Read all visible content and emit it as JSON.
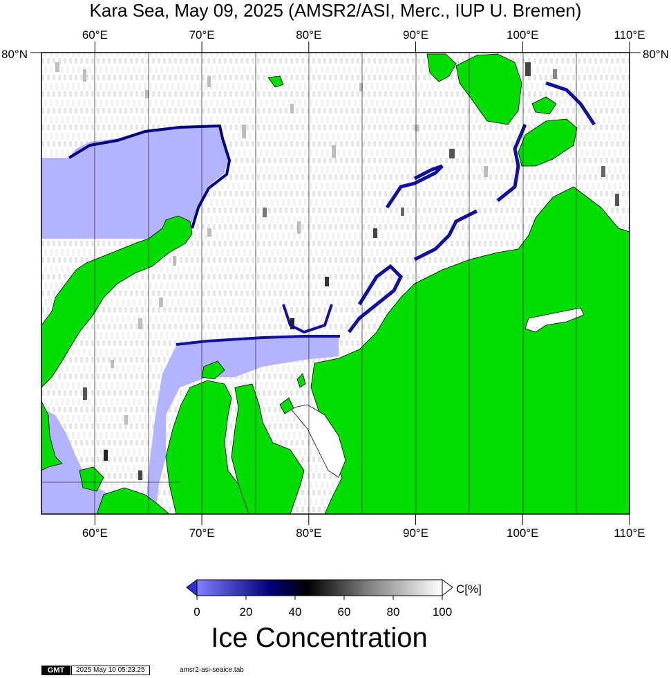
{
  "title": "Kara Sea, May 09, 2025 (AMSR2/ASI, Merc., IUP U. Bremen)",
  "map": {
    "lon_ticks": [
      {
        "lon": 60,
        "label": "60°E"
      },
      {
        "lon": 70,
        "label": "70°E"
      },
      {
        "lon": 80,
        "label": "80°E"
      },
      {
        "lon": 90,
        "label": "90°E"
      },
      {
        "lon": 100,
        "label": "100°E"
      },
      {
        "lon": 110,
        "label": "110°E"
      }
    ],
    "lat_label": "80°N",
    "lon_range": [
      55,
      110
    ],
    "colors": {
      "land": "#00dd00",
      "open_water": "#b3b3ff",
      "ice": "#ffffff",
      "margin": "#0000aa"
    }
  },
  "colorbar": {
    "unit_label": "C[%]",
    "ticks": [
      "0",
      "20",
      "40",
      "60",
      "80",
      "100"
    ],
    "title": "Ice Concentration",
    "stops": [
      "#8080ff",
      "#00007a",
      "#000000",
      "#808080",
      "#ffffff"
    ]
  },
  "footer": {
    "logo": "GMT",
    "timestamp": "2025 May 10 05:23:25",
    "filename": "amsr2-asi-seaice.tab"
  }
}
